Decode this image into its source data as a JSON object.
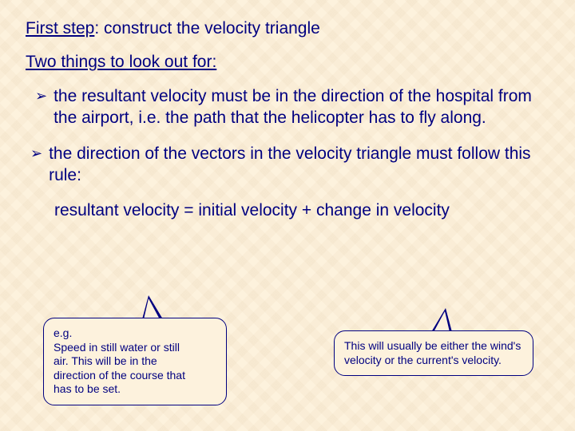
{
  "heading": {
    "underlined": "First step",
    "rest": ": construct the velocity triangle"
  },
  "subheading": "Two things to look out for:",
  "bullets": [
    "the resultant velocity must be in the direction of the hospital from the airport, i.e. the path that the helicopter has to fly along.",
    "the direction of the vectors in the velocity triangle must follow this rule:"
  ],
  "equation": "resultant velocity = initial velocity + change in velocity",
  "callout1": {
    "prefix": "e.g.",
    "text": "Speed in still water or still air. This will be in the direction of the course that has to be set."
  },
  "callout2": "This will usually be either the wind's  velocity or the current's velocity.",
  "colors": {
    "text": "#000080",
    "background": "#fdf2dd"
  }
}
